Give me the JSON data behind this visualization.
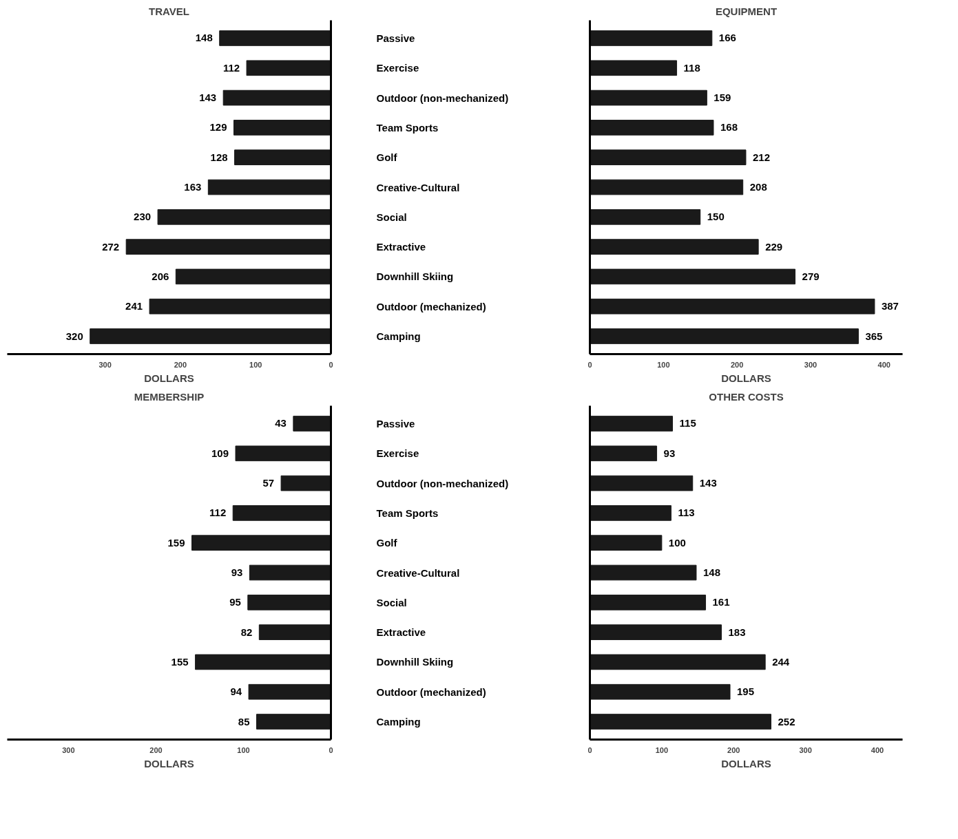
{
  "chart_data": [
    {
      "type": "bar",
      "orientation": "horizontal",
      "title": "TRAVEL",
      "xlabel": "DOLLARS",
      "categories": [
        "Passive",
        "Exercise",
        "Outdoor (non-mechanized)",
        "Team Sports",
        "Golf",
        "Creative-Cultural",
        "Social",
        "Extractive",
        "Downhill Skiing",
        "Outdoor (mechanized)",
        "Camping"
      ],
      "values": [
        148,
        112,
        143,
        129,
        128,
        163,
        230,
        272,
        206,
        241,
        320
      ],
      "color": "#1a1a1a",
      "xlim": [
        430,
        0
      ],
      "xticks": [
        300,
        200,
        100,
        0
      ],
      "data_labels": true
    },
    {
      "type": "bar",
      "orientation": "horizontal",
      "title": "EQUIPMENT",
      "xlabel": "DOLLARS",
      "categories": [
        null,
        null,
        null,
        null,
        null,
        null,
        null,
        null,
        null,
        null,
        null
      ],
      "values": [
        166,
        118,
        159,
        168,
        212,
        208,
        150,
        229,
        279,
        387,
        365
      ],
      "color": "#1a1a1a",
      "xlim": [
        0,
        425
      ],
      "xticks": [
        0,
        100,
        200,
        300,
        400
      ],
      "data_labels": true
    },
    {
      "type": "bar",
      "orientation": "horizontal",
      "title": "MEMBERSHIP",
      "xlabel": "DOLLARS",
      "categories": [
        "Passive",
        "Exercise",
        "Outdoor (non-mechanized)",
        "Team Sports",
        "Golf",
        "Creative-Cultural",
        "Social",
        "Extractive",
        "Downhill Skiing",
        "Outdoor (mechanized)",
        "Camping"
      ],
      "values": [
        43,
        109,
        57,
        112,
        159,
        93,
        95,
        82,
        155,
        94,
        85
      ],
      "color": "#1a1a1a",
      "xlim": [
        370,
        0
      ],
      "xticks": [
        300,
        200,
        100,
        0
      ],
      "data_labels": true
    },
    {
      "type": "bar",
      "orientation": "horizontal",
      "title": "OTHER COSTS",
      "xlabel": "DOLLARS",
      "categories": [
        null,
        null,
        null,
        null,
        null,
        null,
        null,
        null,
        null,
        null,
        null
      ],
      "values": [
        115,
        93,
        143,
        113,
        100,
        148,
        161,
        183,
        244,
        195,
        252
      ],
      "color": "#1a1a1a",
      "xlim": [
        0,
        435
      ],
      "xticks": [
        0,
        100,
        200,
        300,
        400
      ],
      "data_labels": true
    }
  ]
}
